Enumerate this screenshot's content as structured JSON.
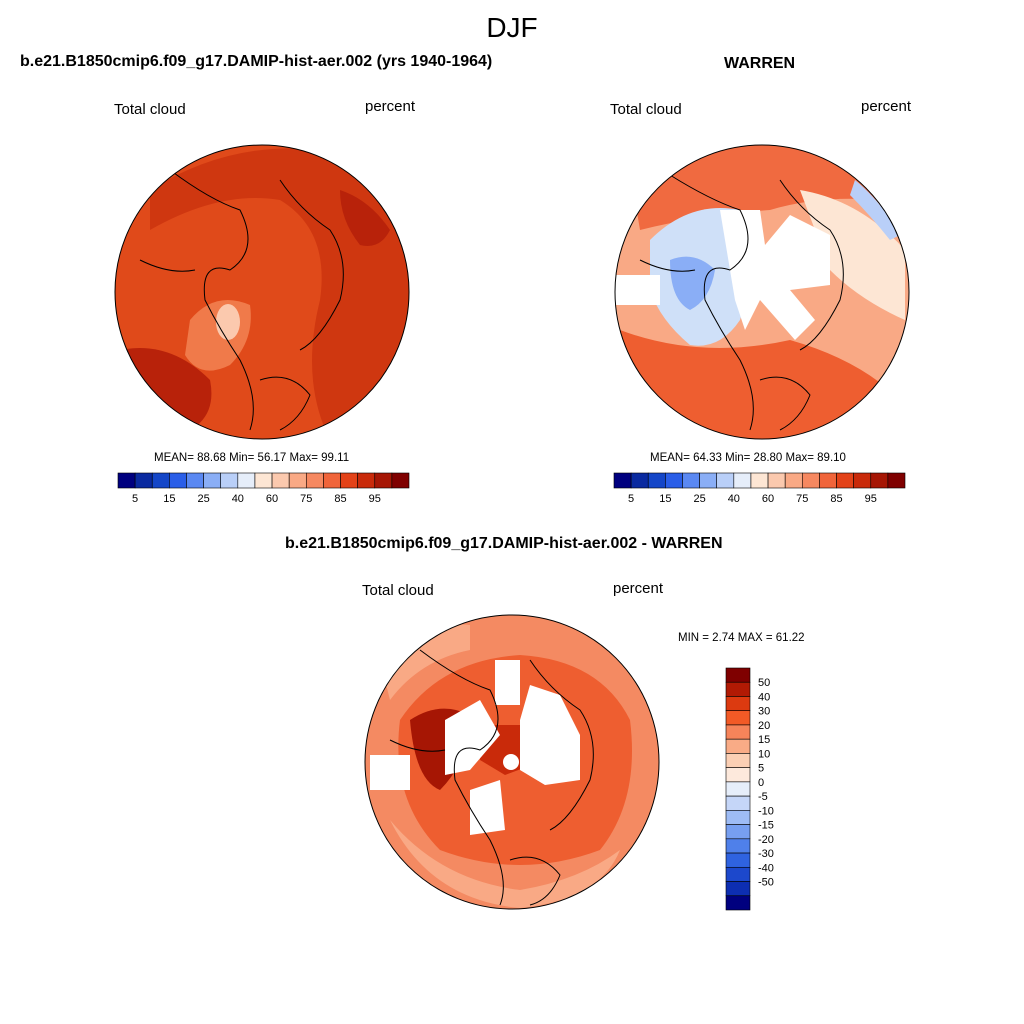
{
  "season": "DJF",
  "panels": [
    {
      "title": "b.e21.B1850cmip6.f09_g17.DAMIP-hist-aer.002 (yrs 1940-1964)",
      "left_label": "Total cloud",
      "right_label": "percent",
      "stats": "MEAN=  88.68  Min=  56.17  Max=  99.11"
    },
    {
      "title": "WARREN",
      "left_label": "Total cloud",
      "right_label": "percent",
      "stats": "MEAN=  64.33  Min=  28.80  Max=  89.10"
    },
    {
      "title": "b.e21.B1850cmip6.f09_g17.DAMIP-hist-aer.002 - WARREN",
      "left_label": "Total cloud",
      "right_label": "percent",
      "stats": "MIN =   2.74 MAX =  61.22"
    }
  ],
  "colorbar_abs": {
    "colors": [
      "#00007f",
      "#0a2aa0",
      "#1446c8",
      "#2a5ee8",
      "#5a88f2",
      "#8aaef6",
      "#b9cff8",
      "#e6eefa",
      "#fde6d4",
      "#fbc9ae",
      "#f9a985",
      "#f68860",
      "#f0643a",
      "#e34218",
      "#c92a0a",
      "#a61604",
      "#7f0000"
    ],
    "tick_labels": [
      "5",
      "15",
      "25",
      "40",
      "60",
      "75",
      "85",
      "95"
    ]
  },
  "colorbar_diff": {
    "colors": [
      "#7f0000",
      "#b11a04",
      "#dc3a10",
      "#f25a26",
      "#f6845a",
      "#f9ab86",
      "#fbcfb4",
      "#fde9dc",
      "#e6eefa",
      "#c5d6f8",
      "#9ebcf5",
      "#779ff0",
      "#4f80ea",
      "#2f63e0",
      "#1c48cc",
      "#0d2eb2",
      "#00007f"
    ],
    "tick_labels": [
      "50",
      "40",
      "30",
      "20",
      "15",
      "10",
      "5",
      "0",
      "-5",
      "-10",
      "-15",
      "-20",
      "-30",
      "-40",
      "-50"
    ]
  },
  "maps": {
    "top_left_fill": "#e04a1a",
    "top_right_fill": "#f48a62",
    "bottom_fill": "#f47a48",
    "missing_fill": "#ffffff"
  }
}
